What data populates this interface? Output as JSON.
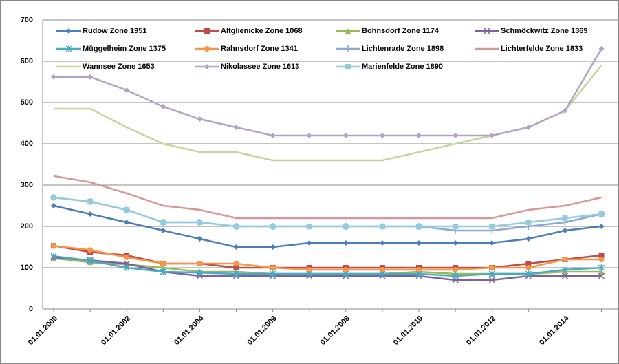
{
  "chart_data": {
    "type": "line",
    "categories": [
      "01.01.2000",
      null,
      "01.01.2002",
      null,
      "01.01.2004",
      null,
      "01.01.2006",
      null,
      "01.01.2008",
      null,
      "01.01.2010",
      null,
      "01.01.2012",
      null,
      "01.01.2014",
      null
    ],
    "series": [
      {
        "name": "Rudow Zone 1951",
        "color": "#4a7ebb",
        "marker": "diamond",
        "values": [
          250,
          230,
          210,
          190,
          170,
          150,
          150,
          160,
          160,
          160,
          160,
          160,
          160,
          170,
          190,
          200
        ]
      },
      {
        "name": "Altglienicke Zone 1068",
        "color": "#be4b48",
        "marker": "square",
        "values": [
          153,
          138,
          130,
          110,
          110,
          100,
          100,
          100,
          100,
          100,
          100,
          100,
          100,
          110,
          120,
          130
        ]
      },
      {
        "name": "Bohnsdorf Zone  1174",
        "color": "#98b954",
        "marker": "triangle",
        "values": [
          123,
          113,
          108,
          100,
          90,
          90,
          85,
          85,
          85,
          85,
          90,
          85,
          85,
          85,
          90,
          90
        ]
      },
      {
        "name": "Schmöckwitz Zone 1369",
        "color": "#7d60a0",
        "marker": "x",
        "values": [
          125,
          118,
          110,
          90,
          80,
          80,
          80,
          80,
          80,
          80,
          80,
          70,
          70,
          80,
          80,
          80
        ]
      },
      {
        "name": "Müggelheim Zone 1375",
        "color": "#46aac5",
        "marker": "asterisk",
        "values": [
          128,
          117,
          100,
          90,
          88,
          85,
          85,
          85,
          85,
          85,
          85,
          80,
          85,
          85,
          95,
          100
        ]
      },
      {
        "name": "Rahnsdorf Zone 1341",
        "color": "#f79646",
        "marker": "circle",
        "values": [
          153,
          143,
          125,
          110,
          110,
          110,
          100,
          95,
          95,
          95,
          95,
          95,
          100,
          100,
          120,
          120
        ]
      },
      {
        "name": "Lichtenrade Zone 1898",
        "color": "#8fa8d6",
        "marker": "plus",
        "values": [
          270,
          260,
          240,
          210,
          210,
          200,
          200,
          200,
          200,
          200,
          200,
          190,
          190,
          200,
          210,
          230
        ]
      },
      {
        "name": "Lichterfelde Zone 1833",
        "color": "#d99694",
        "marker": "none",
        "values": [
          322,
          307,
          280,
          250,
          240,
          220,
          220,
          220,
          220,
          220,
          220,
          220,
          220,
          240,
          250,
          270
        ]
      },
      {
        "name": "Wannsee Zone 1653",
        "color": "#c3d69b",
        "marker": "none",
        "values": [
          485,
          485,
          440,
          400,
          380,
          380,
          360,
          360,
          360,
          360,
          380,
          400,
          420,
          440,
          480,
          590
        ]
      },
      {
        "name": "Nikolassee Zone 1613",
        "color": "#b3a2c7",
        "marker": "diamond",
        "values": [
          562,
          562,
          530,
          490,
          460,
          440,
          420,
          420,
          420,
          420,
          420,
          420,
          420,
          440,
          480,
          630
        ]
      },
      {
        "name": "Marienfelde Zone 1890",
        "color": "#93cddd",
        "marker": "square",
        "values": [
          270,
          260,
          240,
          210,
          210,
          200,
          200,
          200,
          200,
          200,
          200,
          200,
          200,
          210,
          220,
          230
        ]
      }
    ],
    "ylim": [
      0,
      700
    ],
    "yticks": [
      0,
      100,
      200,
      300,
      400,
      500,
      600,
      700
    ],
    "grid": true,
    "legend": "top"
  }
}
